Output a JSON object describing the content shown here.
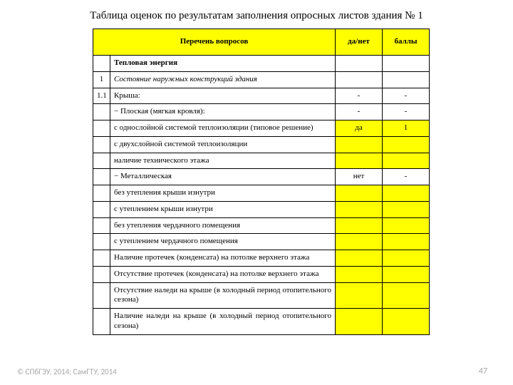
{
  "title": "Таблица оценок по результатам заполнения опросных листов здания № 1",
  "headers": {
    "questions": "Перечень вопросов",
    "yn": "да/нет",
    "score": "баллы"
  },
  "rows": [
    {
      "num": "",
      "text": "Тепловая энергия",
      "yn": "",
      "score": "",
      "textBold": true,
      "textItalic": false,
      "ynYellow": false,
      "scoreYellow": false,
      "textJustify": false
    },
    {
      "num": "1",
      "text": "Состояние наружных конструкций здания",
      "yn": "",
      "score": "",
      "textBold": false,
      "textItalic": true,
      "ynYellow": false,
      "scoreYellow": false,
      "textJustify": false
    },
    {
      "num": "1.1",
      "text": "Крыша:",
      "yn": "-",
      "score": "-",
      "textBold": false,
      "textItalic": false,
      "ynYellow": false,
      "scoreYellow": false,
      "textJustify": false
    },
    {
      "num": "",
      "text": "−    Плоская (мягкая кровля):",
      "yn": "-",
      "score": "-",
      "textBold": false,
      "textItalic": false,
      "ynYellow": false,
      "scoreYellow": false,
      "textJustify": false
    },
    {
      "num": "",
      "text": "с однослойной системой теплоизоляции (типовое решение)",
      "yn": "да",
      "score": "1",
      "textBold": false,
      "textItalic": false,
      "ynYellow": true,
      "scoreYellow": true,
      "textJustify": false
    },
    {
      "num": "",
      "text": "с двухслойной системой теплоизоляции",
      "yn": "",
      "score": "",
      "textBold": false,
      "textItalic": false,
      "ynYellow": true,
      "scoreYellow": true,
      "textJustify": false
    },
    {
      "num": "",
      "text": "наличие технического этажа",
      "yn": "",
      "score": "",
      "textBold": false,
      "textItalic": false,
      "ynYellow": true,
      "scoreYellow": true,
      "textJustify": false
    },
    {
      "num": "",
      "text": "−    Металлическая",
      "yn": "нет",
      "score": "-",
      "textBold": false,
      "textItalic": false,
      "ynYellow": false,
      "scoreYellow": false,
      "textJustify": false
    },
    {
      "num": "",
      "text": "без утепления крыши изнутри",
      "yn": "",
      "score": "",
      "textBold": false,
      "textItalic": false,
      "ynYellow": true,
      "scoreYellow": true,
      "textJustify": false
    },
    {
      "num": "",
      "text": "с утеплением крыши изнутри",
      "yn": "",
      "score": "",
      "textBold": false,
      "textItalic": false,
      "ynYellow": true,
      "scoreYellow": true,
      "textJustify": false
    },
    {
      "num": "",
      "text": "без утепления чердачного помещения",
      "yn": "",
      "score": "",
      "textBold": false,
      "textItalic": false,
      "ynYellow": true,
      "scoreYellow": true,
      "textJustify": false
    },
    {
      "num": "",
      "text": "с утеплением чердачного помещения",
      "yn": "",
      "score": "",
      "textBold": false,
      "textItalic": false,
      "ynYellow": true,
      "scoreYellow": true,
      "textJustify": false
    },
    {
      "num": "",
      "text": "Наличие протечек (конденсата) на потолке верхнего этажа",
      "yn": "",
      "score": "",
      "textBold": false,
      "textItalic": false,
      "ynYellow": true,
      "scoreYellow": true,
      "textJustify": false
    },
    {
      "num": "",
      "text": " Отсутствие протечек (конденсата) на потолке верхнего этажа",
      "yn": "",
      "score": "",
      "textBold": false,
      "textItalic": false,
      "ynYellow": true,
      "scoreYellow": true,
      "textJustify": true
    },
    {
      "num": "",
      "text": " Отсутствие наледи на крыше (в холодный период отопительного сезона)",
      "yn": "",
      "score": "",
      "textBold": false,
      "textItalic": false,
      "ynYellow": true,
      "scoreYellow": true,
      "textJustify": true
    },
    {
      "num": "",
      "text": " Наличие наледи на крыше (в холодный период отопительного сезона)",
      "yn": "",
      "score": "",
      "textBold": false,
      "textItalic": false,
      "ynYellow": true,
      "scoreYellow": true,
      "textJustify": true
    }
  ],
  "copyright": "© СПбГЭУ, 2014; СамГТУ, 2014",
  "pageNumber": "47",
  "colors": {
    "highlight": "#ffff00",
    "border": "#000000",
    "background": "#ffffff",
    "footerText": "#a6a6a6"
  }
}
